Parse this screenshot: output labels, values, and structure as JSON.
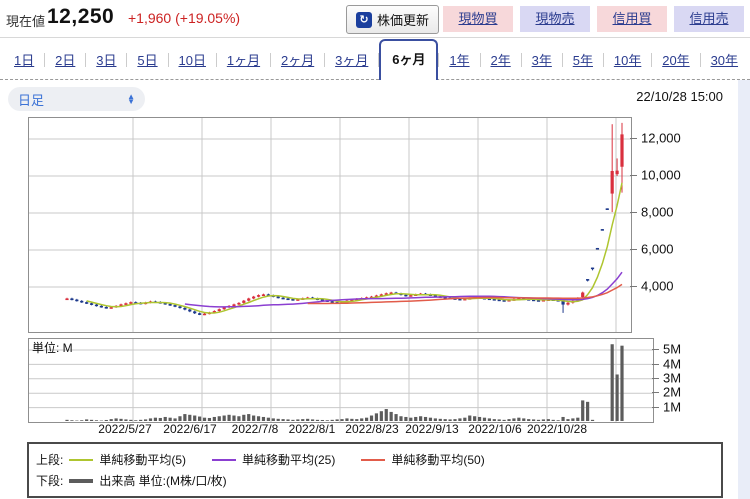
{
  "header": {
    "label": "現在値",
    "price": "12,250",
    "change": "+1,960 (+19.05%)",
    "refresh_button": "株価更新",
    "refresh_icon_glyph": "↻",
    "buy_cash": "現物買",
    "sell_cash": "現物売",
    "buy_margin": "信用買",
    "sell_margin": "信用売"
  },
  "tabs": {
    "items": [
      "1日",
      "2日",
      "3日",
      "5日",
      "10日",
      "1ヶ月",
      "2ヶ月",
      "3ヶ月",
      "6ヶ月",
      "1年",
      "2年",
      "3年",
      "5年",
      "10年",
      "20年",
      "30年"
    ],
    "active_index": 8,
    "active_label": "6ヶ月"
  },
  "controls": {
    "timeframe_select": "日足",
    "timestamp": "22/10/28 15:00"
  },
  "legend": {
    "upper_label": "上段:",
    "lower_label": "下段:",
    "volume_label": "出来高 単位:(M株/口/枚)"
  },
  "colors": {
    "up_candle": "#d9303e",
    "down_candle": "#1e3a8c",
    "volume_bar": "#5c5c5c",
    "grid": "#c9c9c9",
    "link": "#2b3c8f",
    "change_red": "#cc2222"
  },
  "chart_data": {
    "type": "candlestick_with_volume",
    "price_ticks": [
      "12,000",
      "10,000",
      "8,000",
      "6,000",
      "4,000"
    ],
    "price_tick_values": [
      12000,
      10000,
      8000,
      6000,
      4000
    ],
    "volume_ticks": [
      "5M",
      "4M",
      "3M",
      "2M",
      "1M"
    ],
    "volume_tick_values": [
      5,
      4,
      3,
      2,
      1
    ],
    "volume_unit_label": "単位: M",
    "x_labels": [
      "2022/5/27",
      "2022/6/17",
      "2022/7/8",
      "2022/8/1",
      "2022/8/23",
      "2022/9/13",
      "2022/10/6",
      "2022/10/28"
    ],
    "ma_series": [
      {
        "name": "単純移動平均(5)",
        "window": 5,
        "color": "#aec52f"
      },
      {
        "name": "単純移動平均(25)",
        "window": 25,
        "color": "#8b3fd1"
      },
      {
        "name": "単純移動平均(50)",
        "window": 50,
        "color": "#e25c4a"
      }
    ],
    "candles": [
      3380,
      3320,
      3250,
      3180,
      3120,
      3050,
      2980,
      2920,
      2870,
      2910,
      2980,
      3060,
      3120,
      3180,
      3150,
      3100,
      3160,
      3220,
      3190,
      3140,
      3080,
      3020,
      2950,
      2870,
      2780,
      2680,
      2580,
      2520,
      2560,
      2620,
      2700,
      2800,
      2900,
      2980,
      3060,
      3140,
      3260,
      3380,
      3480,
      3560,
      3600,
      3550,
      3480,
      3420,
      3380,
      3350,
      3300,
      3340,
      3390,
      3430,
      3380,
      3330,
      3280,
      3230,
      3180,
      3150,
      3200,
      3260,
      3310,
      3360,
      3400,
      3440,
      3480,
      3540,
      3600,
      3660,
      3700,
      3650,
      3580,
      3520,
      3560,
      3600,
      3640,
      3600,
      3550,
      3500,
      3460,
      3420,
      3390,
      3360,
      3330,
      3360,
      3400,
      3440,
      3410,
      3380,
      3350,
      3320,
      3290,
      3260,
      3300,
      3340,
      3380,
      3350,
      3320,
      3290,
      3260,
      3300,
      3330,
      3300,
      3280,
      [
        3300,
        3320,
        2600,
        3050
      ],
      [
        3050,
        3200,
        3000,
        3150
      ],
      [
        3150,
        3300,
        3100,
        3250
      ],
      [
        3250,
        3450,
        3200,
        3400
      ],
      [
        3450,
        3750,
        3400,
        3700
      ],
      [
        4430,
        4430,
        4300,
        4420
      ],
      [
        5050,
        5050,
        4900,
        5040
      ],
      [
        6110,
        6110,
        6080,
        6100
      ],
      [
        7130,
        7130,
        7100,
        7120
      ],
      [
        8250,
        8250,
        8220,
        8240
      ],
      [
        9050,
        12800,
        8050,
        10270
      ],
      [
        10100,
        10950,
        10000,
        10290
      ],
      [
        10500,
        12870,
        9100,
        12250
      ]
    ],
    "volumes": [
      0.15,
      0.12,
      0.1,
      0.12,
      0.18,
      0.15,
      0.12,
      0.1,
      0.14,
      0.2,
      0.25,
      0.22,
      0.18,
      0.15,
      0.12,
      0.15,
      0.18,
      0.25,
      0.3,
      0.28,
      0.35,
      0.3,
      0.25,
      0.4,
      0.55,
      0.5,
      0.45,
      0.38,
      0.3,
      0.28,
      0.35,
      0.4,
      0.45,
      0.5,
      0.45,
      0.4,
      0.5,
      0.55,
      0.45,
      0.4,
      0.35,
      0.3,
      0.25,
      0.22,
      0.2,
      0.18,
      0.15,
      0.18,
      0.2,
      0.22,
      0.18,
      0.15,
      0.14,
      0.12,
      0.15,
      0.18,
      0.2,
      0.25,
      0.22,
      0.2,
      0.25,
      0.3,
      0.45,
      0.6,
      0.75,
      0.9,
      0.7,
      0.55,
      0.4,
      0.35,
      0.3,
      0.35,
      0.4,
      0.35,
      0.3,
      0.25,
      0.22,
      0.2,
      0.18,
      0.2,
      0.25,
      0.3,
      0.45,
      0.4,
      0.35,
      0.3,
      0.25,
      0.2,
      0.18,
      0.15,
      0.2,
      0.25,
      0.3,
      0.25,
      0.2,
      0.18,
      0.15,
      0.18,
      0.2,
      0.15,
      0.12,
      0.35,
      0.2,
      0.25,
      0.3,
      1.5,
      1.4,
      0.15,
      0.06,
      0.06,
      0.06,
      5.4,
      3.3,
      5.3
    ]
  }
}
